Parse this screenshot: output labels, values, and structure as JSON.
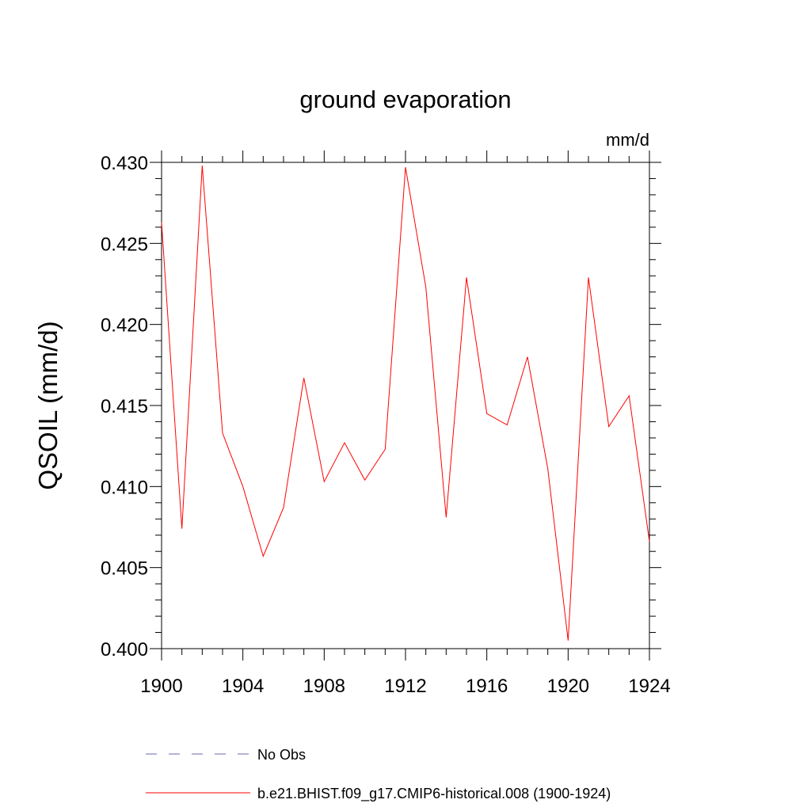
{
  "chart_data": {
    "type": "line",
    "title": "ground evaporation",
    "units_label": "mm/d",
    "ylabel": "QSOIL  (mm/d)",
    "xlabel": "",
    "xlim": [
      1900,
      1924
    ],
    "ylim": [
      0.4,
      0.43
    ],
    "x_ticks": [
      "1900",
      "1904",
      "1908",
      "1912",
      "1916",
      "1920",
      "1924"
    ],
    "y_ticks": [
      "0.400",
      "0.405",
      "0.410",
      "0.415",
      "0.420",
      "0.425",
      "0.430"
    ],
    "grid": false,
    "x": [
      1900,
      1901,
      1902,
      1903,
      1904,
      1905,
      1906,
      1907,
      1908,
      1909,
      1910,
      1911,
      1912,
      1913,
      1914,
      1915,
      1916,
      1917,
      1918,
      1919,
      1920,
      1921,
      1922,
      1923,
      1924
    ],
    "series": [
      {
        "name": "b.e21.BHIST.f09_g17.CMIP6-historical.008 (1900-1924)",
        "color": "#ff0000",
        "style": "solid",
        "values": [
          0.4263,
          0.4074,
          0.4298,
          0.4133,
          0.41,
          0.4057,
          0.4087,
          0.4167,
          0.4103,
          0.4127,
          0.4104,
          0.4123,
          0.4297,
          0.4223,
          0.4081,
          0.4229,
          0.4145,
          0.4138,
          0.418,
          0.4111,
          0.4005,
          0.4229,
          0.4137,
          0.4156,
          0.4066
        ]
      }
    ],
    "legend": [
      {
        "label": "No Obs",
        "color": "#6a6ab0",
        "style": "dashed"
      },
      {
        "label": "b.e21.BHIST.f09_g17.CMIP6-historical.008 (1900-1924)",
        "color": "#ff0000",
        "style": "solid"
      }
    ],
    "legend_position": "bottom"
  }
}
